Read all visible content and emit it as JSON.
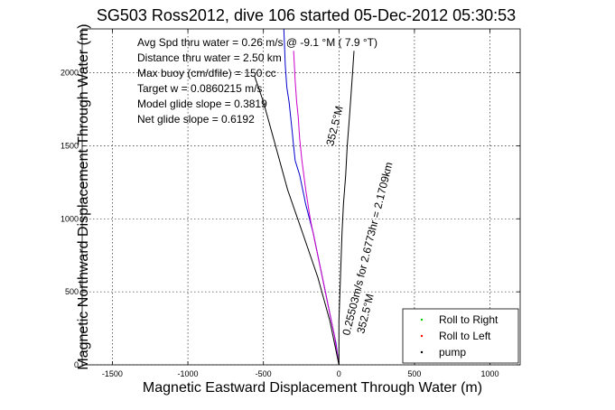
{
  "chart_data": {
    "type": "line",
    "title": "SG503 Ross2012, dive 106 started 05-Dec-2012 05:30:53",
    "xlabel": "Magnetic Eastward Displacement Through Water (m)",
    "ylabel": "Magnetic Northward Displacement Through Water (m)",
    "xlim": [
      -1700,
      1200
    ],
    "ylim": [
      0,
      2300
    ],
    "xticks": [
      -1500,
      -1000,
      -500,
      0,
      500,
      1000
    ],
    "yticks": [
      0,
      500,
      1000,
      1500,
      2000
    ],
    "grid": true,
    "legend_position": "bottom-right",
    "legend": [
      {
        "label": "Roll to Right",
        "color": "#00cc00"
      },
      {
        "label": "Roll to Left",
        "color": "#ff0000"
      },
      {
        "label": "pump",
        "color": "#000000"
      }
    ],
    "annotations": [
      "Avg Spd thru water =  0.26 m/s @  -9.1   °M (  7.9 °T)",
      "Distance thru water =  2.50 km",
      "Max buoy (cm/dfile) = 150 cc",
      "Target w = 0.0860215 m/s",
      "Model glide slope = 0.3819",
      "Net glide slope = 0.6192"
    ],
    "rotated_annotations": [
      "0.25503m/s for 2.6773hr = 2.1709km",
      "352.5°M",
      "352.5°M"
    ],
    "series": [
      {
        "name": "",
        "color": "#0000cc",
        "x": [
          0,
          -20,
          -50,
          -90,
          -130,
          -170,
          -220,
          -260,
          -290,
          -300,
          -310,
          -320,
          -330,
          -345,
          -355,
          -365
        ],
        "y": [
          0,
          150,
          300,
          500,
          700,
          900,
          1100,
          1300,
          1400,
          1500,
          1600,
          1700,
          1800,
          1900,
          2050,
          2300
        ]
      },
      {
        "name": "",
        "color": "#cc00cc",
        "x": [
          0,
          -30,
          -70,
          -110,
          -150,
          -190,
          -220,
          -245,
          -260,
          -270,
          -280,
          -290,
          -295,
          -300
        ],
        "y": [
          0,
          200,
          400,
          600,
          800,
          1000,
          1200,
          1400,
          1550,
          1700,
          1800,
          1950,
          2050,
          2150
        ]
      },
      {
        "name": "",
        "color": "#000000",
        "x": [
          0,
          -60,
          -140,
          -240,
          -340,
          -420,
          -500,
          -560
        ],
        "y": [
          0,
          300,
          600,
          900,
          1200,
          1500,
          1800,
          1980
        ]
      },
      {
        "name": "",
        "color": "#000000",
        "x": [
          0,
          0,
          10,
          20,
          30,
          45,
          55,
          70,
          80,
          90,
          100
        ],
        "y": [
          0,
          300,
          600,
          900,
          1100,
          1300,
          1500,
          1700,
          1850,
          2000,
          2150
        ]
      }
    ]
  }
}
